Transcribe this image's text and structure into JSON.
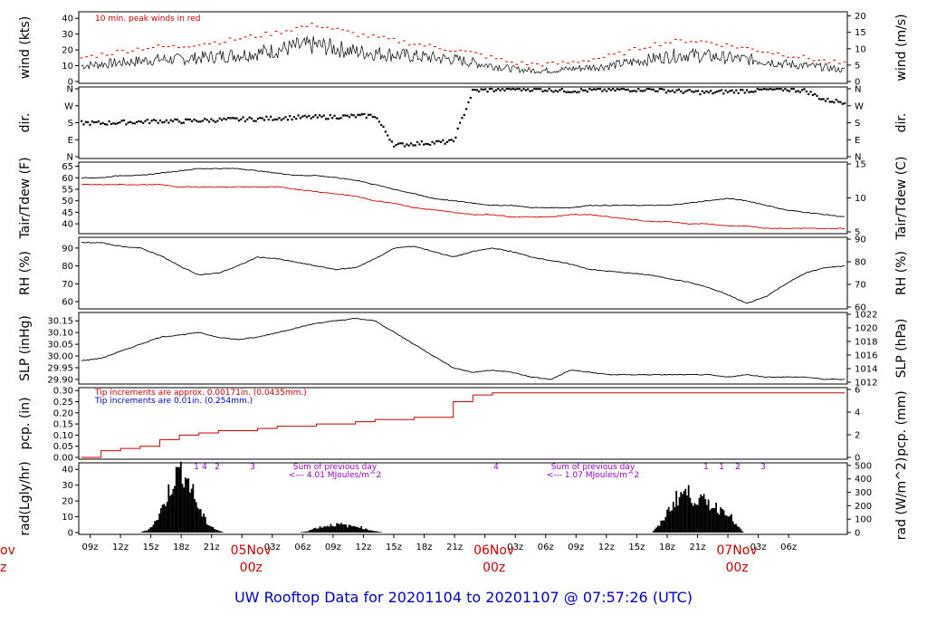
{
  "title": "UW Rooftop Data for 20201104  to  20201107 @ 07:57:26  (UTC)",
  "colors": {
    "trace": "#000000",
    "peak": "#dd0000",
    "dew": "#dd0000",
    "rain_red": "#cc0000",
    "rain_blue": "#0000cc",
    "rad_note": "#9900cc",
    "title": "#0000cc",
    "day": "#cc0000"
  },
  "x_axis": {
    "hours": [
      "09z",
      "12z",
      "15z",
      "18z",
      "21z",
      "00z",
      "03z",
      "06z",
      "09z",
      "12z",
      "15z",
      "18z",
      "21z",
      "00z",
      "03z",
      "06z",
      "09z",
      "12z",
      "15z",
      "18z",
      "21z",
      "00z",
      "03z",
      "06z"
    ],
    "days": [
      {
        "top": "05Nov",
        "bottom": "00z"
      },
      {
        "top": "06Nov",
        "bottom": "00z"
      },
      {
        "top": "07Nov",
        "bottom": "00z"
      }
    ],
    "left_edge_partial": {
      "top": "ov",
      "bottom": "z"
    }
  },
  "chart_data": [
    {
      "type": "line",
      "name": "wind",
      "left_axis_label": "wind (kts)",
      "right_axis_label": "wind (m/s)",
      "left_ticks": [
        "0",
        "10",
        "20",
        "30",
        "40"
      ],
      "right_ticks": [
        "0",
        "5",
        "10",
        "15",
        "20"
      ],
      "ylim": [
        0,
        43
      ],
      "annotation": "10 min. peak winds in red",
      "series": [
        {
          "values": [
            10,
            11,
            12,
            13,
            14,
            14,
            15,
            16,
            17,
            18,
            20,
            22,
            23,
            21,
            19,
            18,
            17,
            16,
            15,
            14,
            12,
            10,
            8,
            7,
            7,
            8,
            9,
            10,
            12,
            14,
            16,
            17,
            16,
            15,
            14,
            13,
            11,
            10,
            9,
            7
          ]
        },
        {
          "values": [
            15,
            17,
            19,
            21,
            22,
            22,
            24,
            25,
            27,
            29,
            31,
            34,
            36,
            33,
            30,
            28,
            26,
            24,
            22,
            20,
            18,
            15,
            12,
            11,
            11,
            12,
            14,
            16,
            19,
            23,
            25,
            26,
            25,
            23,
            21,
            19,
            17,
            15,
            13,
            11
          ]
        }
      ]
    },
    {
      "type": "scatter",
      "name": "direction",
      "left_axis_label": "dir.",
      "right_axis_label": "dir.",
      "left_ticks": [
        "N",
        "E",
        "S",
        "W",
        "N"
      ],
      "right_ticks": [
        "N",
        "E",
        "S",
        "W",
        "N"
      ],
      "ylim": [
        0,
        360
      ],
      "series": [
        {
          "values": [
            180,
            178,
            182,
            185,
            190,
            188,
            192,
            195,
            198,
            200,
            205,
            208,
            210,
            212,
            215,
            218,
            60,
            70,
            75,
            80,
            350,
            355,
            360,
            358,
            355,
            350,
            352,
            354,
            356,
            358,
            350,
            345,
            340,
            345,
            350,
            355,
            358,
            350,
            300,
            290
          ]
        }
      ]
    },
    {
      "type": "line",
      "name": "temperature",
      "left_axis_label": "Tair/Tdew (F)",
      "right_axis_label": "Tair/Tdew (C)",
      "left_ticks": [
        "40",
        "45",
        "50",
        "55",
        "60",
        "65"
      ],
      "right_ticks": [
        "5",
        "10",
        "15"
      ],
      "ylim": [
        36.5,
        66
      ],
      "series": [
        {
          "values": [
            60,
            60,
            61,
            61,
            62,
            63,
            64,
            64,
            64,
            63,
            62,
            61,
            61,
            60,
            59,
            57,
            55,
            53,
            51,
            50,
            49,
            48,
            48,
            47,
            47,
            47,
            48,
            48,
            48,
            48,
            48,
            49,
            50,
            51,
            50,
            48,
            46,
            45,
            44,
            43
          ]
        },
        {
          "values": [
            57,
            57,
            57,
            57,
            57,
            56,
            56,
            56,
            56,
            56,
            56,
            55,
            54,
            53,
            52,
            50,
            49,
            47,
            46,
            45,
            44,
            44,
            43,
            43,
            43,
            44,
            44,
            43,
            42,
            41,
            41,
            40,
            40,
            39,
            39,
            38,
            38,
            38,
            38,
            38
          ]
        }
      ]
    },
    {
      "type": "line",
      "name": "humidity",
      "left_axis_label": "RH (%)",
      "right_axis_label": "RH (%)",
      "left_ticks": [
        "60",
        "70",
        "80",
        "90"
      ],
      "right_ticks": [
        "60",
        "70",
        "80",
        "90"
      ],
      "ylim": [
        57,
        95
      ],
      "series": [
        {
          "values": [
            93,
            93,
            91,
            90,
            86,
            80,
            75,
            76,
            80,
            85,
            84,
            82,
            80,
            78,
            79,
            84,
            90,
            91,
            88,
            85,
            88,
            90,
            88,
            85,
            83,
            81,
            78,
            77,
            76,
            75,
            73,
            71,
            68,
            64,
            59,
            63,
            70,
            76,
            79,
            80
          ]
        }
      ]
    },
    {
      "type": "line",
      "name": "pressure",
      "left_axis_label": "SLP (inHg)",
      "right_axis_label": "SLP (hPa)",
      "left_ticks": [
        "29.90",
        "29.95",
        "30.00",
        "30.05",
        "30.10",
        "30.15"
      ],
      "right_ticks": [
        "1012",
        "1014",
        "1016",
        "1018",
        "1020",
        "1022"
      ],
      "ylim": [
        29.888,
        30.178
      ],
      "series": [
        {
          "values": [
            29.98,
            29.99,
            30.02,
            30.05,
            30.08,
            30.09,
            30.1,
            30.08,
            30.07,
            30.08,
            30.1,
            30.12,
            30.14,
            30.15,
            30.16,
            30.15,
            30.1,
            30.05,
            30.0,
            29.95,
            29.93,
            29.94,
            29.93,
            29.91,
            29.9,
            29.94,
            29.93,
            29.92,
            29.92,
            29.92,
            29.92,
            29.92,
            29.92,
            29.91,
            29.92,
            29.91,
            29.91,
            29.91,
            29.9,
            29.9
          ]
        }
      ]
    },
    {
      "type": "line",
      "name": "precipitation",
      "left_axis_label": "pcp. (in)",
      "right_axis_label": "pcp. (mm)",
      "left_ticks": [
        "0.00",
        "0.05",
        "0.10",
        "0.15",
        "0.20",
        "0.25",
        "0.30"
      ],
      "right_ticks": [
        "0",
        "2",
        "4",
        "6"
      ],
      "ylim": [
        0,
        0.305
      ],
      "annotations": [
        "Tip increments are approx. 0.00171in. (0.0435mm.)",
        "Tip increments are 0.01in. (0.254mm.)"
      ],
      "series": [
        {
          "values": [
            0.0,
            0.03,
            0.04,
            0.05,
            0.08,
            0.1,
            0.11,
            0.12,
            0.12,
            0.13,
            0.14,
            0.14,
            0.15,
            0.15,
            0.16,
            0.17,
            0.17,
            0.18,
            0.18,
            0.25,
            0.28,
            0.29,
            0.29,
            0.29,
            0.29,
            0.29,
            0.29,
            0.29,
            0.29,
            0.29,
            0.29,
            0.29,
            0.29,
            0.29,
            0.29,
            0.29,
            0.29,
            0.29,
            0.29,
            0.29
          ]
        }
      ]
    },
    {
      "type": "area",
      "name": "radiation",
      "left_axis_label": "rad(Lgly/hr)",
      "right_axis_label": "rad (W/m^2)",
      "left_ticks": [
        "0",
        "10",
        "20",
        "30",
        "40"
      ],
      "right_ticks": [
        "0",
        "100",
        "200",
        "300",
        "400",
        "500"
      ],
      "ylim": [
        0,
        43
      ],
      "series": [
        {
          "values": [
            0,
            0,
            0,
            0,
            0,
            0,
            0,
            0,
            2,
            8,
            20,
            34,
            40,
            30,
            15,
            6,
            2,
            0,
            0,
            0,
            0,
            0,
            0,
            0,
            0,
            0,
            0,
            1,
            3,
            4,
            5,
            5,
            4,
            4,
            2,
            1,
            0,
            0,
            0,
            0,
            0,
            0,
            0,
            0,
            0,
            0,
            0,
            0,
            0,
            0,
            0,
            0,
            0,
            0,
            0,
            0,
            0,
            0,
            0,
            0,
            0,
            0,
            0,
            0,
            0,
            0,
            0,
            0,
            0,
            5,
            14,
            22,
            26,
            22,
            20,
            18,
            15,
            14,
            5,
            0,
            0,
            0,
            0,
            0,
            0,
            0,
            0,
            0,
            0,
            0,
            0,
            0
          ]
        }
      ],
      "sum_notes": [
        {
          "title": "Sum of previous day",
          "value": "<--- 4.01 MJoules/m^2"
        },
        {
          "title": "Sum of previous day",
          "value": "<--- 1.07 MJoules/m^2"
        }
      ],
      "counts": [
        "1",
        "2",
        "3",
        "4",
        "1",
        "1",
        "2",
        "3",
        "4"
      ]
    }
  ]
}
